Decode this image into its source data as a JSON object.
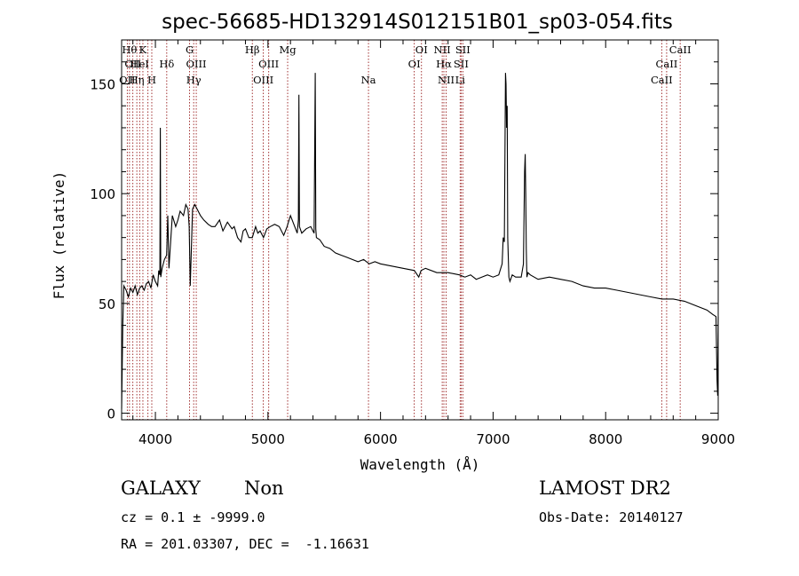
{
  "chart_data": {
    "type": "line",
    "title": "spec-56685-HD132914S012151B01_sp03-054.fits",
    "xlabel": "Wavelength (Å)",
    "ylabel": "Flux (relative)",
    "xlim": [
      3700,
      9000
    ],
    "ylim": [
      -3,
      170
    ],
    "xticks": [
      4000,
      5000,
      6000,
      7000,
      8000,
      9000
    ],
    "yticks": [
      0,
      50,
      100,
      150
    ],
    "grid": false,
    "line_color": "#000000",
    "marker_color": "#8b0000",
    "series": [
      {
        "x": [
          3700,
          3710,
          3720,
          3740,
          3760,
          3780,
          3800,
          3820,
          3840,
          3860,
          3880,
          3900,
          3920,
          3940,
          3960,
          3980,
          4000,
          4020,
          4030,
          4040,
          4044,
          4048,
          4060,
          4080,
          4100,
          4110,
          4120,
          4150,
          4180,
          4200,
          4220,
          4250,
          4270,
          4290,
          4300,
          4310,
          4330,
          4350,
          4370,
          4400,
          4430,
          4470,
          4500,
          4530,
          4570,
          4600,
          4640,
          4680,
          4700,
          4730,
          4760,
          4780,
          4800,
          4830,
          4861,
          4890,
          4910,
          4930,
          4960,
          4990,
          5020,
          5060,
          5100,
          5140,
          5170,
          5200,
          5230,
          5260,
          5270,
          5275,
          5280,
          5300,
          5340,
          5380,
          5410,
          5420,
          5425,
          5430,
          5460,
          5500,
          5550,
          5600,
          5650,
          5700,
          5750,
          5800,
          5850,
          5900,
          5950,
          6000,
          6100,
          6200,
          6300,
          6340,
          6360,
          6400,
          6500,
          6600,
          6700,
          6750,
          6800,
          6850,
          6900,
          6950,
          7000,
          7050,
          7080,
          7090,
          7100,
          7110,
          7115,
          7120,
          7125,
          7130,
          7140,
          7150,
          7170,
          7200,
          7250,
          7270,
          7280,
          7285,
          7290,
          7295,
          7300,
          7310,
          7330,
          7400,
          7500,
          7600,
          7700,
          7800,
          7900,
          8000,
          8100,
          8200,
          8300,
          8400,
          8500,
          8600,
          8700,
          8800,
          8900,
          8950,
          8980,
          8990,
          8995,
          9000
        ],
        "y": [
          2,
          40,
          58,
          56,
          53,
          57,
          55,
          58,
          54,
          57,
          58,
          56,
          59,
          60,
          57,
          63,
          60,
          58,
          65,
          63,
          130,
          62,
          66,
          70,
          72,
          90,
          66,
          90,
          85,
          88,
          92,
          90,
          95,
          93,
          85,
          58,
          93,
          95,
          93,
          90,
          88,
          86,
          85,
          85,
          88,
          83,
          87,
          84,
          85,
          80,
          78,
          83,
          84,
          80,
          80,
          85,
          82,
          83,
          80,
          84,
          85,
          86,
          85,
          81,
          85,
          90,
          86,
          82,
          88,
          145,
          85,
          82,
          84,
          85,
          82,
          155,
          84,
          80,
          79,
          76,
          75,
          73,
          72,
          71,
          70,
          69,
          70,
          68,
          69,
          68,
          67,
          66,
          65,
          62,
          65,
          66,
          64,
          64,
          63,
          62,
          63,
          61,
          62,
          63,
          62,
          63,
          68,
          80,
          78,
          155,
          150,
          130,
          140,
          80,
          62,
          60,
          63,
          62,
          62,
          68,
          110,
          118,
          100,
          75,
          62,
          64,
          63,
          61,
          62,
          61,
          60,
          58,
          57,
          57,
          56,
          55,
          54,
          53,
          52,
          52,
          51,
          49,
          47,
          45,
          44,
          15,
          8,
          44
        ]
      }
    ],
    "line_markers": [
      {
        "x": 3750,
        "label": "OII",
        "row": 2
      },
      {
        "x": 3770,
        "label": "Hθ",
        "row": 0
      },
      {
        "x": 3800,
        "label": "OII",
        "row": 1
      },
      {
        "x": 3835,
        "label": "Hη",
        "row": 2
      },
      {
        "x": 3860,
        "label": "HeI",
        "row": 1
      },
      {
        "x": 3889,
        "label": "K",
        "row": 0
      },
      {
        "x": 3934,
        "label": "",
        "row": 0
      },
      {
        "x": 3968,
        "label": "H",
        "row": 2
      },
      {
        "x": 4101,
        "label": "Hδ",
        "row": 1
      },
      {
        "x": 4304,
        "label": "G",
        "row": 0
      },
      {
        "x": 4340,
        "label": "Hγ",
        "row": 2
      },
      {
        "x": 4363,
        "label": "OIII",
        "row": 1
      },
      {
        "x": 4861,
        "label": "Hβ",
        "row": 0
      },
      {
        "x": 4959,
        "label": "OIII",
        "row": 2
      },
      {
        "x": 5007,
        "label": "OIII",
        "row": 1
      },
      {
        "x": 5175,
        "label": "Mg",
        "row": 0
      },
      {
        "x": 5893,
        "label": "Na",
        "row": 2
      },
      {
        "x": 6300,
        "label": "OI",
        "row": 1
      },
      {
        "x": 6364,
        "label": "OI",
        "row": 0
      },
      {
        "x": 6548,
        "label": "NII",
        "row": 0
      },
      {
        "x": 6563,
        "label": "Hα",
        "row": 1
      },
      {
        "x": 6583,
        "label": "NII",
        "row": 2
      },
      {
        "x": 6707,
        "label": "Li",
        "row": 2
      },
      {
        "x": 6716,
        "label": "SII",
        "row": 1
      },
      {
        "x": 6731,
        "label": "SII",
        "row": 0
      },
      {
        "x": 8498,
        "label": "CaII",
        "row": 2
      },
      {
        "x": 8542,
        "label": "CaII",
        "row": 1
      },
      {
        "x": 8662,
        "label": "CaII",
        "row": 0
      }
    ]
  },
  "info": {
    "class_label": "GALAXY",
    "subclass_label": "Non",
    "survey": "LAMOST DR2",
    "cz": "cz = 0.1 ± -9999.0",
    "obs_date": "Obs-Date: 20140127",
    "coords": "RA = 201.03307, DEC =  -1.16631"
  }
}
